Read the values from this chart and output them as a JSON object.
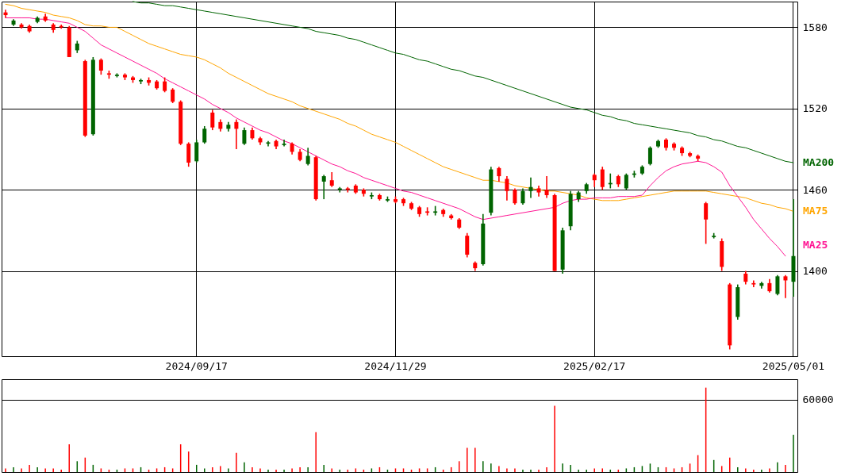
{
  "chart_data": [
    {
      "type": "candlestick",
      "categories": [
        null,
        null,
        null,
        null,
        null,
        null,
        null,
        null,
        null,
        null,
        null,
        null,
        null,
        null,
        null,
        null,
        null,
        null,
        null,
        null,
        null,
        null,
        null,
        null,
        "2024/09/17",
        null,
        null,
        null,
        null,
        null,
        null,
        null,
        null,
        null,
        null,
        null,
        null,
        null,
        null,
        null,
        null,
        null,
        null,
        null,
        null,
        null,
        null,
        null,
        null,
        "2024/11/29",
        null,
        null,
        null,
        null,
        null,
        null,
        null,
        null,
        null,
        null,
        null,
        null,
        null,
        null,
        null,
        null,
        null,
        null,
        null,
        null,
        null,
        null,
        null,
        null,
        "2025/02/17",
        null,
        null,
        null,
        null,
        null,
        null,
        null,
        null,
        null,
        null,
        null,
        null,
        null,
        null,
        null,
        null,
        null,
        null,
        null,
        null,
        null,
        null,
        null,
        null,
        "2025/05/01"
      ],
      "ohlc": [
        [
          1591,
          1593,
          1587,
          1589
        ],
        [
          1582,
          1586,
          1581,
          1585
        ],
        [
          1582,
          1583,
          1579,
          1580
        ],
        [
          1581,
          1582,
          1576,
          1577
        ],
        [
          1584,
          1588,
          1583,
          1587
        ],
        [
          1588,
          1590,
          1584,
          1585
        ],
        [
          1582,
          1583,
          1576,
          1578
        ],
        [
          1581,
          1582,
          1579,
          1580
        ],
        [
          1580,
          1581,
          1558,
          1558
        ],
        [
          1563,
          1570,
          1561,
          1568
        ],
        [
          1555,
          1556,
          1499,
          1500
        ],
        [
          1501,
          1558,
          1500,
          1556
        ],
        [
          1556,
          1557,
          1545,
          1548
        ],
        [
          1546,
          1548,
          1542,
          1545
        ],
        [
          1544,
          1546,
          1543,
          1545
        ],
        [
          1545,
          1546,
          1541,
          1543
        ],
        [
          1543,
          1544,
          1539,
          1541
        ],
        [
          1540,
          1542,
          1538,
          1541
        ],
        [
          1541,
          1543,
          1537,
          1539
        ],
        [
          1540,
          1541,
          1534,
          1535
        ],
        [
          1540,
          1543,
          1532,
          1533
        ],
        [
          1534,
          1535,
          1524,
          1525
        ],
        [
          1525,
          1526,
          1493,
          1494
        ],
        [
          1494,
          1495,
          1477,
          1480
        ],
        [
          1481,
          1497,
          1480,
          1495
        ],
        [
          1495,
          1507,
          1494,
          1505
        ],
        [
          1517,
          1519,
          1504,
          1506
        ],
        [
          1510,
          1512,
          1503,
          1505
        ],
        [
          1505,
          1510,
          1503,
          1508
        ],
        [
          1510,
          1512,
          1490,
          1505
        ],
        [
          1494,
          1506,
          1493,
          1504
        ],
        [
          1504,
          1506,
          1497,
          1498
        ],
        [
          1498,
          1499,
          1493,
          1495
        ],
        [
          1494,
          1496,
          1492,
          1495
        ],
        [
          1496,
          1497,
          1490,
          1492
        ],
        [
          1493,
          1497,
          1492,
          1494
        ],
        [
          1494,
          1495,
          1486,
          1488
        ],
        [
          1488,
          1490,
          1481,
          1482
        ],
        [
          1479,
          1491,
          1478,
          1485
        ],
        [
          1484,
          1485,
          1452,
          1453
        ],
        [
          1466,
          1471,
          1453,
          1470
        ],
        [
          1467,
          1473,
          1462,
          1463
        ],
        [
          1460,
          1462,
          1458,
          1461
        ],
        [
          1461,
          1462,
          1458,
          1460
        ],
        [
          1463,
          1464,
          1457,
          1458
        ],
        [
          1460,
          1461,
          1455,
          1457
        ],
        [
          1455,
          1458,
          1453,
          1456
        ],
        [
          1456,
          1457,
          1452,
          1453
        ],
        [
          1452,
          1455,
          1451,
          1453
        ],
        [
          1453,
          1455,
          1450,
          1451
        ],
        [
          1453,
          1454,
          1448,
          1450
        ],
        [
          1450,
          1451,
          1445,
          1446
        ],
        [
          1447,
          1448,
          1440,
          1442
        ],
        [
          1444,
          1447,
          1441,
          1443
        ],
        [
          1443,
          1448,
          1441,
          1444
        ],
        [
          1445,
          1446,
          1440,
          1442
        ],
        [
          1441,
          1442,
          1438,
          1439
        ],
        [
          1438,
          1439,
          1431,
          1432
        ],
        [
          1426,
          1428,
          1410,
          1412
        ],
        [
          1406,
          1407,
          1400,
          1402
        ],
        [
          1405,
          1442,
          1404,
          1435
        ],
        [
          1443,
          1477,
          1441,
          1475
        ],
        [
          1476,
          1477,
          1466,
          1470
        ],
        [
          1468,
          1470,
          1452,
          1459
        ],
        [
          1460,
          1461,
          1449,
          1450
        ],
        [
          1450,
          1461,
          1449,
          1459
        ],
        [
          1459,
          1469,
          1454,
          1462
        ],
        [
          1461,
          1463,
          1455,
          1458
        ],
        [
          1460,
          1470,
          1454,
          1456
        ],
        [
          1456,
          1457,
          1400,
          1400
        ],
        [
          1401,
          1432,
          1398,
          1430
        ],
        [
          1433,
          1459,
          1430,
          1457
        ],
        [
          1453,
          1459,
          1451,
          1458
        ],
        [
          1459,
          1465,
          1457,
          1464
        ],
        [
          1471,
          1472,
          1462,
          1467
        ],
        [
          1475,
          1477,
          1460,
          1462
        ],
        [
          1464,
          1472,
          1461,
          1465
        ],
        [
          1470,
          1471,
          1462,
          1464
        ],
        [
          1461,
          1472,
          1460,
          1471
        ],
        [
          1471,
          1474,
          1469,
          1472
        ],
        [
          1472,
          1478,
          1471,
          1477
        ],
        [
          1479,
          1492,
          1478,
          1491
        ],
        [
          1492,
          1497,
          1491,
          1496
        ],
        [
          1497,
          1498,
          1489,
          1491
        ],
        [
          1494,
          1495,
          1489,
          1491
        ],
        [
          1491,
          1492,
          1485,
          1487
        ],
        [
          1487,
          1488,
          1484,
          1485
        ],
        [
          1485,
          1486,
          1481,
          1483
        ],
        [
          1450,
          1451,
          1420,
          1438
        ],
        [
          1425,
          1428,
          1424,
          1426
        ],
        [
          1422,
          1424,
          1400,
          1403
        ],
        [
          1390,
          1391,
          1342,
          1345
        ],
        [
          1366,
          1390,
          1364,
          1388
        ],
        [
          1398,
          1400,
          1390,
          1392
        ],
        [
          1391,
          1393,
          1388,
          1390
        ],
        [
          1389,
          1392,
          1387,
          1391
        ],
        [
          1391,
          1394,
          1384,
          1385
        ],
        [
          1383,
          1397,
          1382,
          1396
        ],
        [
          1396,
          1397,
          1380,
          1393
        ],
        [
          1392,
          1453,
          1381,
          1411
        ]
      ],
      "colors": [
        "#ff0000",
        "#006400",
        "#ff0000",
        "#ff0000",
        "#006400",
        "#ff0000",
        "#ff0000",
        "#ff0000",
        "#ff0000",
        "#006400",
        "#ff0000",
        "#006400",
        "#ff0000",
        "#ff0000",
        "#006400",
        "#ff0000",
        "#ff0000",
        "#006400",
        "#ff0000",
        "#ff0000",
        "#ff0000",
        "#ff0000",
        "#ff0000",
        "#ff0000",
        "#006400",
        "#006400",
        "#ff0000",
        "#ff0000",
        "#006400",
        "#ff0000",
        "#006400",
        "#ff0000",
        "#ff0000",
        "#006400",
        "#ff0000",
        "#006400",
        "#ff0000",
        "#ff0000",
        "#006400",
        "#ff0000",
        "#006400",
        "#ff0000",
        "#006400",
        "#ff0000",
        "#ff0000",
        "#ff0000",
        "#006400",
        "#ff0000",
        "#006400",
        "#ff0000",
        "#ff0000",
        "#ff0000",
        "#ff0000",
        "#ff0000",
        "#006400",
        "#ff0000",
        "#ff0000",
        "#ff0000",
        "#ff0000",
        "#ff0000",
        "#006400",
        "#006400",
        "#ff0000",
        "#ff0000",
        "#ff0000",
        "#006400",
        "#006400",
        "#ff0000",
        "#ff0000",
        "#ff0000",
        "#006400",
        "#006400",
        "#006400",
        "#006400",
        "#ff0000",
        "#ff0000",
        "#006400",
        "#ff0000",
        "#006400",
        "#006400",
        "#006400",
        "#006400",
        "#006400",
        "#ff0000",
        "#ff0000",
        "#ff0000",
        "#ff0000",
        "#ff0000",
        "#ff0000",
        "#006400",
        "#ff0000",
        "#ff0000",
        "#006400",
        "#ff0000",
        "#ff0000",
        "#006400",
        "#ff0000",
        "#006400",
        "#ff0000",
        "#006400"
      ],
      "series": [
        {
          "name": "MA200",
          "type": "line",
          "color": "#006400",
          "values": [
            null,
            null,
            null,
            null,
            null,
            null,
            null,
            null,
            null,
            null,
            null,
            null,
            null,
            null,
            null,
            null,
            1599,
            1598,
            1598,
            1597,
            1596,
            1596,
            1595,
            1594,
            1593,
            1592,
            1591,
            1590,
            1589,
            1588,
            1587,
            1586,
            1585,
            1584,
            1583,
            1582,
            1581,
            1580,
            1579,
            1577,
            1576,
            1575,
            1574,
            1572,
            1571,
            1569,
            1567,
            1565,
            1563,
            1561,
            1560,
            1558,
            1556,
            1555,
            1553,
            1551,
            1549,
            1548,
            1546,
            1544,
            1543,
            1541,
            1539,
            1537,
            1535,
            1533,
            1531,
            1529,
            1527,
            1525,
            1523,
            1521,
            1520,
            1519,
            1517,
            1515,
            1514,
            1512,
            1511,
            1509,
            1508,
            1507,
            1506,
            1505,
            1504,
            1503,
            1502,
            1500,
            1499,
            1497,
            1496,
            1494,
            1492,
            1491,
            1489,
            1487,
            1485,
            1483,
            1481,
            1480
          ]
        },
        {
          "name": "MA75",
          "type": "line",
          "color": "#ffa500",
          "values": [
            1597,
            1596,
            1594,
            1593,
            1592,
            1591,
            1589,
            1588,
            1587,
            1585,
            1582,
            1581,
            1581,
            1580,
            1580,
            1577,
            1574,
            1571,
            1568,
            1566,
            1564,
            1562,
            1560,
            1559,
            1558,
            1556,
            1553,
            1550,
            1546,
            1543,
            1540,
            1537,
            1534,
            1531,
            1529,
            1527,
            1525,
            1522,
            1520,
            1518,
            1516,
            1514,
            1512,
            1509,
            1507,
            1504,
            1501,
            1499,
            1497,
            1495,
            1492,
            1489,
            1486,
            1483,
            1480,
            1477,
            1475,
            1473,
            1471,
            1469,
            1467,
            1467,
            1466,
            1465,
            1463,
            1462,
            1461,
            1460,
            1459,
            1459,
            1458,
            1457,
            1456,
            1454,
            1453,
            1452,
            1452,
            1452,
            1453,
            1454,
            1455,
            1456,
            1457,
            1458,
            1459,
            1459,
            1459,
            1459,
            1459,
            1458,
            1457,
            1456,
            1455,
            1454,
            1452,
            1450,
            1449,
            1447,
            1446,
            1444
          ]
        },
        {
          "name": "MA25",
          "type": "line",
          "color": "#ff1493",
          "values": [
            1587,
            1587,
            1587,
            1587,
            1586,
            1586,
            1585,
            1584,
            1583,
            1580,
            1577,
            1572,
            1567,
            1564,
            1561,
            1558,
            1555,
            1552,
            1549,
            1546,
            1542,
            1539,
            1536,
            1533,
            1530,
            1527,
            1523,
            1520,
            1517,
            1513,
            1510,
            1507,
            1504,
            1502,
            1499,
            1496,
            1494,
            1491,
            1488,
            1485,
            1482,
            1479,
            1477,
            1474,
            1472,
            1469,
            1467,
            1465,
            1463,
            1461,
            1459,
            1458,
            1456,
            1454,
            1452,
            1450,
            1448,
            1446,
            1443,
            1440,
            1438,
            1439,
            1440,
            1441,
            1442,
            1443,
            1444,
            1445,
            1446,
            1447,
            1450,
            1452,
            1453,
            1453,
            1454,
            1454,
            1454,
            1455,
            1455,
            1455,
            1456,
            1463,
            1469,
            1474,
            1477,
            1479,
            1480,
            1481,
            1480,
            1477,
            1473,
            1463,
            1455,
            1447,
            1438,
            1431,
            1424,
            1418,
            1411,
            null
          ]
        }
      ],
      "ylim": [
        1337,
        1599
      ],
      "yticks": [
        1400,
        1460,
        1520,
        1580
      ],
      "grid": true
    },
    {
      "type": "bar",
      "categories": [
        null,
        null,
        null,
        null,
        null,
        null,
        null,
        null,
        null,
        null,
        null,
        null,
        null,
        null,
        null,
        null,
        null,
        null,
        null,
        null,
        null,
        null,
        null,
        null,
        null,
        null,
        null,
        null,
        null,
        null,
        null,
        null,
        null,
        null,
        null,
        null,
        null,
        null,
        null,
        null,
        null,
        null,
        null,
        null,
        null,
        null,
        null,
        null,
        null,
        null,
        null,
        null,
        null,
        null,
        null,
        null,
        null,
        null,
        null,
        null,
        null,
        null,
        null,
        null,
        null,
        null,
        null,
        null,
        null,
        null,
        null,
        null,
        null,
        null,
        null,
        null,
        null,
        null,
        null,
        null,
        null,
        null,
        null,
        null,
        null,
        null,
        null,
        null,
        null,
        null,
        null,
        null,
        null,
        null,
        null,
        null,
        null,
        null,
        null,
        null
      ],
      "values": [
        3000,
        4000,
        3000,
        6000,
        4000,
        3000,
        3000,
        2000,
        23000,
        9000,
        12000,
        6000,
        3000,
        2000,
        2000,
        3000,
        3000,
        4000,
        2000,
        3000,
        4000,
        3000,
        23000,
        17000,
        6000,
        3000,
        4000,
        5000,
        3000,
        16000,
        8000,
        4000,
        3000,
        2000,
        2000,
        2000,
        3000,
        4000,
        4000,
        33000,
        6000,
        3000,
        2000,
        2000,
        3000,
        2000,
        3000,
        4000,
        2000,
        3000,
        3000,
        2000,
        3000,
        3000,
        4000,
        2000,
        4000,
        9000,
        20000,
        20000,
        9000,
        7000,
        5000,
        3000,
        3000,
        2000,
        2000,
        2000,
        4000,
        55000,
        7000,
        6000,
        2000,
        2000,
        3000,
        3000,
        2000,
        2000,
        3000,
        4000,
        5000,
        7000,
        4000,
        4000,
        3000,
        4000,
        7000,
        14000,
        70000,
        10000,
        5000,
        12000,
        4000,
        3000,
        2000,
        2000,
        3000,
        8000,
        6000,
        31000
      ],
      "colors": [
        "#ff0000",
        "#006400",
        "#ff0000",
        "#ff0000",
        "#006400",
        "#ff0000",
        "#ff0000",
        "#ff0000",
        "#ff0000",
        "#006400",
        "#ff0000",
        "#006400",
        "#ff0000",
        "#ff0000",
        "#006400",
        "#ff0000",
        "#ff0000",
        "#006400",
        "#ff0000",
        "#ff0000",
        "#ff0000",
        "#ff0000",
        "#ff0000",
        "#ff0000",
        "#006400",
        "#006400",
        "#ff0000",
        "#ff0000",
        "#006400",
        "#ff0000",
        "#006400",
        "#ff0000",
        "#ff0000",
        "#006400",
        "#ff0000",
        "#006400",
        "#ff0000",
        "#ff0000",
        "#006400",
        "#ff0000",
        "#006400",
        "#ff0000",
        "#006400",
        "#ff0000",
        "#ff0000",
        "#ff0000",
        "#006400",
        "#ff0000",
        "#006400",
        "#ff0000",
        "#ff0000",
        "#ff0000",
        "#ff0000",
        "#ff0000",
        "#006400",
        "#ff0000",
        "#ff0000",
        "#ff0000",
        "#ff0000",
        "#ff0000",
        "#006400",
        "#006400",
        "#ff0000",
        "#ff0000",
        "#ff0000",
        "#006400",
        "#006400",
        "#ff0000",
        "#ff0000",
        "#ff0000",
        "#006400",
        "#006400",
        "#006400",
        "#006400",
        "#ff0000",
        "#ff0000",
        "#006400",
        "#ff0000",
        "#006400",
        "#006400",
        "#006400",
        "#006400",
        "#006400",
        "#ff0000",
        "#ff0000",
        "#ff0000",
        "#ff0000",
        "#ff0000",
        "#ff0000",
        "#006400",
        "#ff0000",
        "#ff0000",
        "#006400",
        "#ff0000",
        "#ff0000",
        "#006400",
        "#ff0000",
        "#006400",
        "#ff0000",
        "#006400"
      ],
      "ylim": [
        0,
        77000
      ],
      "yticks": [
        60000
      ],
      "grid": "y",
      "tick_labels": "y"
    }
  ]
}
